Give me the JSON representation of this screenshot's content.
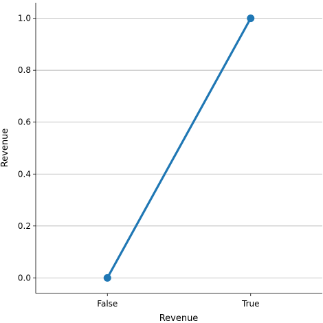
{
  "chart_data": {
    "type": "line",
    "categories": [
      "False",
      "True"
    ],
    "series": [
      {
        "values": [
          0.0,
          1.0
        ]
      }
    ],
    "xlabel": "Revenue",
    "ylabel": "Revenue",
    "ylim": [
      -0.06,
      1.06
    ],
    "yticks": [
      0.0,
      0.2,
      0.4,
      0.6,
      0.8,
      1.0
    ],
    "ytick_labels": [
      "0.0",
      "0.2",
      "0.4",
      "0.6",
      "0.8",
      "1.0"
    ],
    "grid": "horizontal",
    "legend": "none",
    "colors": {
      "series": "#1f77b4",
      "grid": "#b0b0b0",
      "axis": "#000000"
    }
  }
}
